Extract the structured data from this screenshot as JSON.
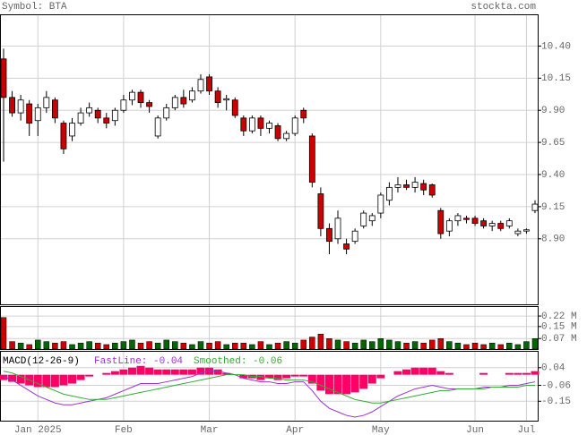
{
  "chart_data": [
    {
      "type": "candlestick",
      "title": "Symbol: BTA",
      "source": "stockta.com",
      "categories": [
        null,
        null,
        null,
        null,
        "Jan 2025",
        null,
        null,
        null,
        null,
        null,
        null,
        null,
        null,
        null,
        "Feb",
        null,
        null,
        null,
        null,
        null,
        null,
        null,
        null,
        null,
        "Mar",
        null,
        null,
        null,
        null,
        null,
        null,
        null,
        null,
        null,
        "Apr",
        null,
        null,
        null,
        null,
        null,
        null,
        null,
        null,
        null,
        "May",
        null,
        null,
        null,
        null,
        null,
        null,
        null,
        null,
        null,
        null,
        "Jun",
        null,
        null,
        null,
        null,
        null,
        "Jul",
        null
      ],
      "open": [
        10.3,
        10.0,
        9.88,
        9.95,
        9.82,
        9.92,
        9.98,
        9.8,
        9.7,
        9.8,
        9.88,
        9.9,
        9.84,
        9.82,
        9.9,
        9.98,
        10.04,
        9.96,
        9.7,
        9.84,
        9.92,
        10.0,
        9.98,
        10.05,
        10.16,
        10.05,
        9.98,
        9.98,
        9.84,
        9.74,
        9.84,
        9.76,
        9.78,
        9.68,
        9.72,
        9.9,
        9.7,
        9.25,
        8.98,
        8.9,
        8.86,
        8.88,
        9.0,
        9.04,
        9.1,
        9.2,
        9.3,
        9.32,
        9.3,
        9.33,
        9.32,
        9.12,
        8.96,
        9.04,
        9.06,
        9.06,
        9.04,
        9.0,
        9.02,
        9.0,
        8.94,
        8.96,
        9.12
      ],
      "high": [
        10.38,
        10.05,
        10.02,
        9.98,
        9.95,
        10.05,
        10.0,
        9.82,
        9.84,
        9.92,
        9.96,
        9.92,
        9.88,
        9.92,
        10.02,
        10.06,
        10.06,
        9.98,
        9.86,
        9.95,
        10.02,
        10.06,
        10.08,
        10.18,
        10.18,
        10.08,
        10.02,
        10.0,
        9.86,
        9.86,
        9.86,
        9.82,
        9.8,
        9.74,
        9.86,
        9.92,
        9.72,
        9.3,
        9.02,
        9.12,
        8.9,
        8.98,
        9.12,
        9.1,
        9.26,
        9.34,
        9.38,
        9.36,
        9.38,
        9.36,
        9.33,
        9.14,
        9.06,
        9.1,
        9.08,
        9.08,
        9.06,
        9.04,
        9.04,
        9.06,
        8.98,
        8.98,
        9.2
      ],
      "low": [
        9.5,
        9.85,
        9.82,
        9.7,
        9.7,
        9.88,
        9.8,
        9.56,
        9.66,
        9.78,
        9.85,
        9.8,
        9.76,
        9.78,
        9.88,
        9.94,
        9.92,
        9.88,
        9.68,
        9.82,
        9.9,
        9.92,
        9.96,
        10.03,
        10.02,
        9.92,
        9.9,
        9.84,
        9.7,
        9.72,
        9.7,
        9.72,
        9.66,
        9.66,
        9.7,
        9.8,
        9.3,
        8.92,
        8.78,
        8.86,
        8.78,
        8.86,
        8.98,
        9.0,
        9.06,
        9.16,
        9.26,
        9.28,
        9.26,
        9.24,
        9.22,
        8.9,
        8.92,
        9.0,
        9.02,
        9.0,
        8.98,
        8.96,
        8.96,
        8.98,
        8.92,
        8.94,
        9.1
      ],
      "close": [
        10.0,
        9.88,
        9.98,
        9.8,
        9.92,
        10.0,
        9.84,
        9.6,
        9.8,
        9.88,
        9.92,
        9.84,
        9.8,
        9.9,
        9.98,
        10.04,
        9.96,
        9.93,
        9.84,
        9.92,
        10.0,
        9.95,
        10.05,
        10.14,
        10.05,
        9.96,
        9.99,
        9.86,
        9.74,
        9.84,
        9.76,
        9.8,
        9.68,
        9.72,
        9.84,
        9.84,
        9.34,
        8.98,
        8.88,
        9.06,
        8.82,
        8.96,
        9.1,
        9.08,
        9.24,
        9.3,
        9.32,
        9.3,
        9.34,
        9.28,
        9.24,
        8.94,
        9.04,
        9.08,
        9.05,
        9.02,
        9.0,
        9.02,
        8.98,
        9.04,
        8.96,
        8.97,
        9.17
      ],
      "up_color": "#ffffff",
      "down_color": "#cc0000",
      "ylim": [
        8.39,
        10.64
      ],
      "yticks": [
        {
          "value": 10.4,
          "label": "10.40"
        },
        10.15,
        {
          "value": 9.9,
          "label": "9.90"
        },
        9.65,
        {
          "value": 9.4,
          "label": "9.40"
        },
        9.15,
        {
          "value": 8.9,
          "label": "8.90"
        }
      ],
      "grid": true
    },
    {
      "type": "bar",
      "values": [
        0.21,
        0.05,
        0.04,
        0.03,
        0.06,
        0.05,
        0.04,
        0.05,
        0.03,
        0.04,
        0.05,
        0.04,
        0.03,
        0.04,
        0.05,
        0.06,
        0.04,
        0.05,
        0.04,
        0.06,
        0.05,
        0.04,
        0.03,
        0.05,
        0.04,
        0.05,
        0.03,
        0.04,
        0.04,
        0.03,
        0.05,
        0.03,
        0.04,
        0.05,
        0.04,
        0.06,
        0.08,
        0.1,
        0.07,
        0.06,
        0.05,
        0.04,
        0.06,
        0.05,
        0.07,
        0.06,
        0.05,
        0.04,
        0.05,
        0.04,
        0.06,
        0.07,
        0.05,
        0.04,
        0.03,
        0.04,
        0.03,
        0.04,
        0.03,
        0.04,
        0.03,
        0.05,
        0.07
      ],
      "up_color": "#006600",
      "down_color": "#cc0000",
      "ylim": [
        0,
        0.28
      ],
      "yticks": [
        {
          "value": 0.22,
          "label": "0.22 M"
        },
        {
          "value": 0.15,
          "label": "0.15 M"
        },
        {
          "value": 0.07,
          "label": "0.07 M"
        }
      ]
    },
    {
      "type": "macd",
      "title": "MACD(12-26-9)",
      "ylim": [
        -0.26,
        0.13
      ],
      "yticks": [
        0.04,
        -0.06,
        -0.15
      ],
      "histogram": [
        -0.03,
        -0.04,
        -0.05,
        -0.06,
        -0.07,
        -0.07,
        -0.07,
        -0.06,
        -0.05,
        -0.03,
        -0.01,
        0.0,
        0.01,
        0.02,
        0.03,
        0.04,
        0.05,
        0.04,
        0.03,
        0.03,
        0.03,
        0.03,
        0.03,
        0.04,
        0.04,
        0.03,
        0.01,
        0.0,
        -0.02,
        -0.02,
        -0.03,
        -0.02,
        -0.03,
        -0.02,
        -0.01,
        -0.01,
        -0.05,
        -0.09,
        -0.11,
        -0.11,
        -0.11,
        -0.1,
        -0.08,
        -0.05,
        -0.02,
        0.0,
        0.02,
        0.03,
        0.04,
        0.04,
        0.04,
        0.02,
        0.01,
        0.0,
        0.0,
        0.0,
        0.01,
        0.0,
        0.0,
        0.01,
        0.01,
        0.01,
        0.02
      ],
      "histogram_color": "#ff0066",
      "series": [
        {
          "name": "FastLine: -0.04",
          "color": "#9933cc",
          "values": [
            -0.01,
            -0.03,
            -0.06,
            -0.09,
            -0.12,
            -0.14,
            -0.16,
            -0.17,
            -0.17,
            -0.16,
            -0.15,
            -0.14,
            -0.13,
            -0.11,
            -0.09,
            -0.07,
            -0.05,
            -0.05,
            -0.05,
            -0.04,
            -0.03,
            -0.02,
            -0.01,
            0.01,
            0.02,
            0.02,
            0.01,
            0.0,
            -0.02,
            -0.03,
            -0.04,
            -0.04,
            -0.05,
            -0.05,
            -0.04,
            -0.04,
            -0.09,
            -0.15,
            -0.19,
            -0.21,
            -0.23,
            -0.24,
            -0.23,
            -0.21,
            -0.18,
            -0.15,
            -0.12,
            -0.1,
            -0.08,
            -0.07,
            -0.06,
            -0.07,
            -0.08,
            -0.08,
            -0.08,
            -0.08,
            -0.07,
            -0.07,
            -0.07,
            -0.06,
            -0.06,
            -0.05,
            -0.04
          ]
        },
        {
          "name": "Smoothed: -0.06",
          "color": "#33aa33",
          "values": [
            0.02,
            0.01,
            -0.01,
            -0.03,
            -0.05,
            -0.07,
            -0.09,
            -0.11,
            -0.12,
            -0.13,
            -0.14,
            -0.14,
            -0.14,
            -0.13,
            -0.12,
            -0.11,
            -0.1,
            -0.09,
            -0.08,
            -0.07,
            -0.06,
            -0.05,
            -0.04,
            -0.03,
            -0.02,
            -0.01,
            0.0,
            0.0,
            0.0,
            -0.01,
            -0.01,
            -0.02,
            -0.02,
            -0.03,
            -0.03,
            -0.03,
            -0.04,
            -0.06,
            -0.08,
            -0.1,
            -0.12,
            -0.14,
            -0.15,
            -0.16,
            -0.16,
            -0.15,
            -0.14,
            -0.13,
            -0.12,
            -0.11,
            -0.1,
            -0.09,
            -0.09,
            -0.08,
            -0.08,
            -0.08,
            -0.08,
            -0.07,
            -0.07,
            -0.07,
            -0.07,
            -0.06,
            -0.06
          ]
        }
      ]
    }
  ]
}
